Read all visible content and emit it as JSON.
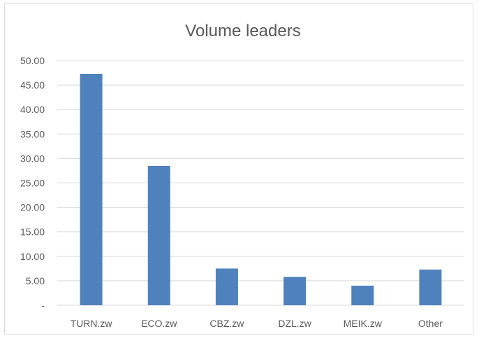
{
  "chart_data": {
    "type": "bar",
    "title": "Volume leaders",
    "categories": [
      "TURN.zw",
      "ECO.zw",
      "CBZ.zw",
      "DZL.zw",
      "MEIK.zw",
      "Other"
    ],
    "values": [
      47.3,
      28.5,
      7.5,
      5.8,
      4.0,
      7.3
    ],
    "ylim": [
      0,
      50
    ],
    "yticks": [
      "-",
      "5.00",
      "10.00",
      "15.00",
      "20.00",
      "25.00",
      "30.00",
      "35.00",
      "40.00",
      "45.00",
      "50.00"
    ],
    "grid": true,
    "legend": "none",
    "colors": {
      "bar": "#4f81bd"
    }
  }
}
